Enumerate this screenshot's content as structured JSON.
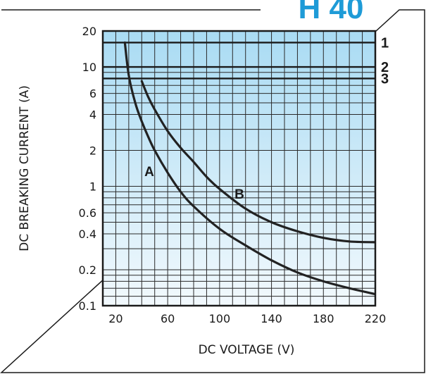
{
  "header": {
    "text": "H 40",
    "color": "#1e9bd7"
  },
  "chart_data": {
    "type": "line",
    "xlabel": "DC VOLTAGE (V)",
    "ylabel": "DC BREAKING CURRENT (A)",
    "x_scale": "linear",
    "y_scale": "log",
    "xlim": [
      10,
      220
    ],
    "ylim": [
      0.1,
      20
    ],
    "x_ticks": [
      20,
      60,
      100,
      140,
      180,
      220
    ],
    "x_tick_labels": [
      "20",
      "60",
      "100",
      "140",
      "180",
      "220"
    ],
    "y_ticks": [
      0.1,
      0.2,
      0.4,
      0.6,
      1,
      2,
      4,
      6,
      10,
      20
    ],
    "y_tick_labels": [
      "0.1",
      "0.2",
      "0.4",
      "0.6",
      "1",
      "2",
      "4",
      "6",
      "10",
      "20"
    ],
    "grid": true,
    "background_gradient": [
      "#a9dbf3",
      "#f2f9fd"
    ],
    "series": [
      {
        "name": "A",
        "color": "#222222",
        "x": [
          27,
          30,
          35,
          40,
          45,
          50,
          60,
          70,
          80,
          100,
          120,
          140,
          160,
          180,
          200,
          220
        ],
        "y": [
          16,
          8.5,
          5.0,
          3.5,
          2.6,
          2.0,
          1.3,
          0.9,
          0.68,
          0.44,
          0.32,
          0.24,
          0.19,
          0.16,
          0.14,
          0.125
        ]
      },
      {
        "name": "B",
        "color": "#222222",
        "x": [
          40,
          45,
          50,
          60,
          70,
          80,
          90,
          100,
          120,
          140,
          160,
          180,
          200,
          220
        ],
        "y": [
          7.6,
          5.6,
          4.4,
          2.9,
          2.1,
          1.6,
          1.2,
          0.95,
          0.65,
          0.5,
          0.42,
          0.37,
          0.345,
          0.34
        ]
      }
    ],
    "reference_lines": [
      {
        "label": "1",
        "y": 16
      },
      {
        "label": "2",
        "y": 10
      },
      {
        "label": "3",
        "y": 8
      }
    ]
  }
}
